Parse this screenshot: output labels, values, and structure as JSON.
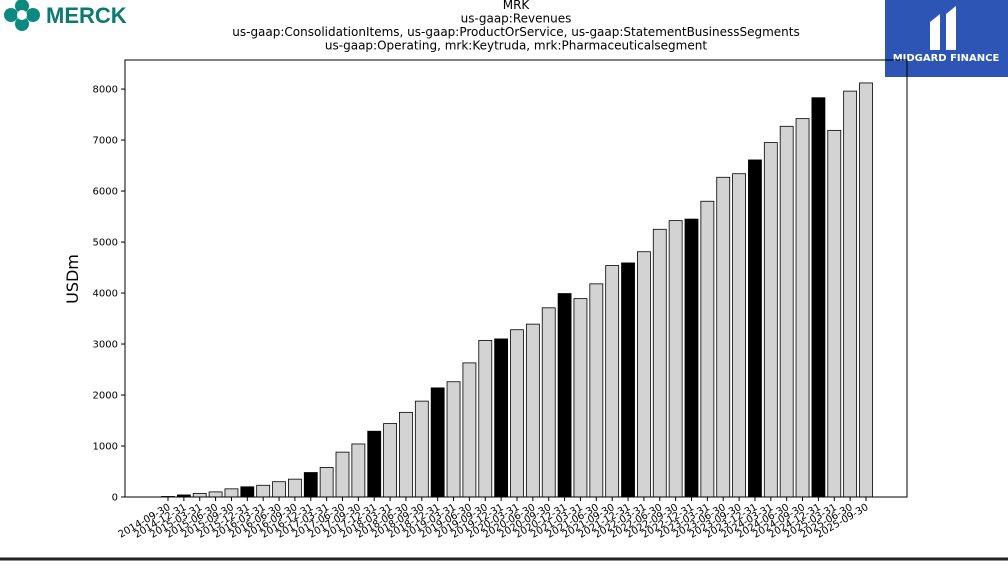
{
  "branding": {
    "left_logo": "MERCK",
    "right_logo": "MIDGARD FINANCE"
  },
  "chart_data": {
    "type": "bar",
    "title": [
      "MRK",
      "us-gaap:Revenues",
      "us-gaap:ConsolidationItems, us-gaap:ProductOrService, us-gaap:StatementBusinessSegments",
      "us-gaap:Operating, mrk:Keytruda, mrk:Pharmaceuticalsegment"
    ],
    "y_label": "USDm",
    "categories": [
      "2014-09-30",
      "2014-12-31",
      "2015-03-31",
      "2015-06-30",
      "2015-09-30",
      "2015-12-31",
      "2016-03-31",
      "2016-06-30",
      "2016-09-30",
      "2016-12-31",
      "2017-03-31",
      "2017-06-30",
      "2017-09-30",
      "2017-12-31",
      "2018-03-31",
      "2018-06-30",
      "2018-09-30",
      "2018-12-31",
      "2019-03-31",
      "2019-06-30",
      "2019-09-30",
      "2019-12-31",
      "2020-03-31",
      "2020-06-30",
      "2020-09-30",
      "2020-12-31",
      "2021-03-31",
      "2021-06-30",
      "2021-09-30",
      "2021-12-31",
      "2022-03-31",
      "2022-06-30",
      "2022-09-30",
      "2022-12-31",
      "2023-03-31",
      "2023-06-30",
      "2023-09-30",
      "2023-12-31",
      "2024-03-31",
      "2024-06-30",
      "2024-09-30",
      "2024-12-31",
      "2025-03-31",
      "2025-06-30",
      "2025-09-30"
    ],
    "values": [
      10,
      40,
      70,
      100,
      160,
      200,
      230,
      300,
      350,
      480,
      580,
      880,
      1040,
      1290,
      1440,
      1660,
      1880,
      2140,
      2260,
      2630,
      3070,
      3100,
      3280,
      3390,
      3710,
      3990,
      3890,
      4180,
      4540,
      4590,
      4810,
      5250,
      5420,
      5450,
      5800,
      6270,
      6340,
      6610,
      6950,
      7270,
      7420,
      7830,
      7190,
      7960,
      8120
    ],
    "colors": [
      "#d3d3d3",
      "#000000",
      "#d3d3d3",
      "#d3d3d3",
      "#d3d3d3",
      "#000000",
      "#d3d3d3",
      "#d3d3d3",
      "#d3d3d3",
      "#000000",
      "#d3d3d3",
      "#d3d3d3",
      "#d3d3d3",
      "#000000",
      "#d3d3d3",
      "#d3d3d3",
      "#d3d3d3",
      "#000000",
      "#d3d3d3",
      "#d3d3d3",
      "#d3d3d3",
      "#000000",
      "#d3d3d3",
      "#d3d3d3",
      "#d3d3d3",
      "#000000",
      "#d3d3d3",
      "#d3d3d3",
      "#d3d3d3",
      "#000000",
      "#d3d3d3",
      "#d3d3d3",
      "#d3d3d3",
      "#000000",
      "#d3d3d3",
      "#d3d3d3",
      "#d3d3d3",
      "#000000",
      "#d3d3d3",
      "#d3d3d3",
      "#d3d3d3",
      "#000000",
      "#d3d3d3",
      "#d3d3d3",
      "#d3d3d3"
    ],
    "ylim": [
      0,
      8570
    ],
    "yticks": [
      0,
      1000,
      2000,
      3000,
      4000,
      5000,
      6000,
      7000,
      8000
    ]
  }
}
